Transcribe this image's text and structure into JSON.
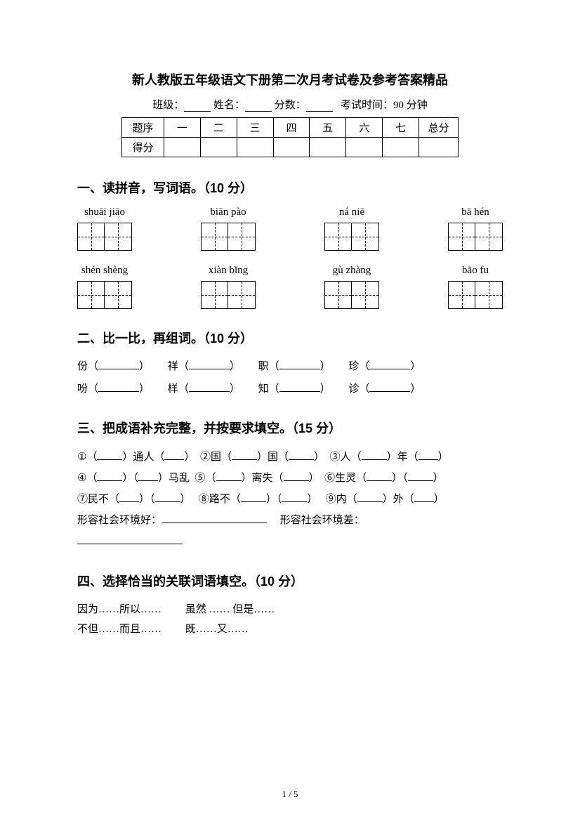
{
  "title": "新人教版五年级语文下册第二次月考试卷及参考答案精品",
  "header": {
    "class_label": "班级：",
    "name_label": "姓名：",
    "score_label": "分数：",
    "exam_time": "考试时间：90 分钟"
  },
  "score_table": {
    "row1": [
      "题序",
      "一",
      "二",
      "三",
      "四",
      "五",
      "六",
      "七",
      "总分"
    ],
    "row2_label": "得分"
  },
  "section1": {
    "heading": "一、读拼音，写词语。（10 分）",
    "row1": [
      {
        "pinyin": "shuāi jiāo",
        "cells": 2
      },
      {
        "pinyin": "biān pào",
        "cells": 2
      },
      {
        "pinyin": "ná niē",
        "cells": 2
      },
      {
        "pinyin": "bā hén",
        "cells": 2
      }
    ],
    "row2": [
      {
        "pinyin": "shén shèng",
        "cells": 2
      },
      {
        "pinyin": "xiàn bǐng",
        "cells": 2
      },
      {
        "pinyin": "gù zhàng",
        "cells": 2
      },
      {
        "pinyin": "bāo fu",
        "cells": 2
      }
    ]
  },
  "section2": {
    "heading": "二、比一比，再组词。（10 分）",
    "pairs": [
      {
        "a": "份",
        "b": "吩"
      },
      {
        "a": "祥",
        "b": "样"
      },
      {
        "a": "职",
        "b": "知"
      },
      {
        "a": "珍",
        "b": "诊"
      }
    ]
  },
  "section3": {
    "heading": "三、把成语补充完整，并按要求填空。（15 分）",
    "items": {
      "i1": {
        "num": "①",
        "parts": [
          "（",
          "）通人（",
          "）"
        ]
      },
      "i2": {
        "num": "②",
        "parts": [
          "国（",
          "）国（",
          "）"
        ]
      },
      "i3": {
        "num": "③",
        "parts": [
          "人（",
          "）年（",
          "）"
        ]
      },
      "i4": {
        "num": "④",
        "parts": [
          "（",
          "）（",
          "）马乱"
        ]
      },
      "i5": {
        "num": "⑤",
        "parts": [
          "（",
          "）离失（",
          "）"
        ]
      },
      "i6": {
        "num": "⑥",
        "parts": [
          "生灵（",
          "）（",
          "）"
        ]
      },
      "i7": {
        "num": "⑦",
        "parts": [
          "民不（",
          "）（",
          "）"
        ]
      },
      "i8": {
        "num": "⑧",
        "parts": [
          "路不（",
          "）（",
          "）"
        ]
      },
      "i9": {
        "num": "⑨",
        "parts": [
          "内（",
          "）外（",
          "）"
        ]
      }
    },
    "good_env": "形容社会环境好：",
    "bad_env": "形容社会环境差："
  },
  "section4": {
    "heading": "四、选择恰当的关联词语填空。（10 分）",
    "words": [
      "因为……所以……",
      "虽然 …… 但是……",
      "不但……而且……",
      "既……又……"
    ]
  },
  "footer": "1 / 5"
}
